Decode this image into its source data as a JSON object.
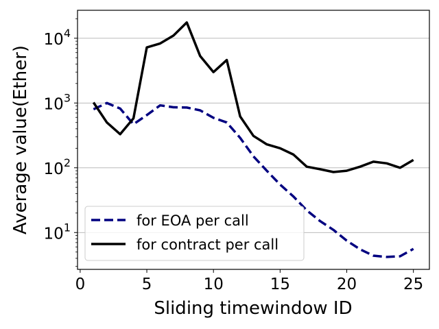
{
  "chart_data": {
    "type": "line",
    "xlabel": "Sliding timewindow ID",
    "ylabel": "Average value(Ether)",
    "xlim": [
      -0.2,
      26.2
    ],
    "ylim": [
      2.7,
      27000
    ],
    "yscale": "log",
    "grid": "horizontal",
    "legend_position": "lower-left",
    "x_ticks": [
      0,
      5,
      10,
      15,
      20,
      25
    ],
    "x_tick_labels": [
      "0",
      "5",
      "10",
      "15",
      "20",
      "25"
    ],
    "y_ticks": [
      10,
      100,
      1000,
      10000
    ],
    "y_tick_labels": [
      {
        "base": "10",
        "exp": "1"
      },
      {
        "base": "10",
        "exp": "2"
      },
      {
        "base": "10",
        "exp": "3"
      },
      {
        "base": "10",
        "exp": "4"
      }
    ],
    "x": [
      1,
      2,
      3,
      4,
      5,
      6,
      7,
      8,
      9,
      10,
      11,
      12,
      13,
      14,
      15,
      16,
      17,
      18,
      19,
      20,
      21,
      22,
      23,
      24,
      25
    ],
    "series": [
      {
        "name": "for EOA per call",
        "color": "#000080",
        "style": "dashed",
        "values": [
          800,
          1000,
          820,
          470,
          650,
          920,
          860,
          850,
          770,
          590,
          500,
          290,
          150,
          90,
          55,
          36,
          22,
          15,
          11,
          7.5,
          5.5,
          4.4,
          4.2,
          4.3,
          5.6
        ]
      },
      {
        "name": "for contract per call",
        "color": "#000000",
        "style": "solid",
        "values": [
          1020,
          500,
          330,
          580,
          7200,
          8300,
          11000,
          17500,
          5300,
          3000,
          4600,
          620,
          310,
          230,
          200,
          160,
          104,
          95,
          86,
          90,
          104,
          124,
          117,
          100,
          132
        ]
      }
    ]
  }
}
